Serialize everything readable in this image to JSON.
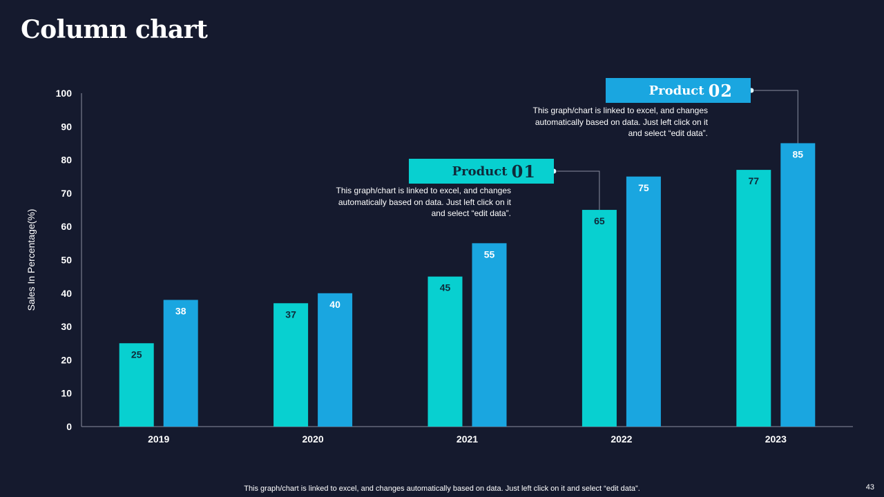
{
  "page": {
    "title": "Column chart",
    "footer": "This graph/chart is linked to excel, and changes automatically based on data. Just left click on it and select “edit data”.",
    "page_number": "43"
  },
  "colors": {
    "background": "#151a2e",
    "product01": "#08d0d0",
    "product02": "#1aa6e0",
    "axis": "#8a8fa0",
    "text": "#ffffff"
  },
  "callouts": [
    {
      "label_word": "Product",
      "label_num": "01",
      "text_lines": [
        "This graph/chart is linked to excel, and changes",
        "automatically based on data. Just left click on it",
        "and select “edit data”."
      ]
    },
    {
      "label_word": "Product",
      "label_num": "02",
      "text_lines": [
        "This graph/chart is linked to excel, and changes",
        "automatically based on data. Just left click on it",
        "and select “edit data”."
      ]
    }
  ],
  "chart_data": {
    "type": "bar",
    "title": "",
    "xlabel": "",
    "ylabel": "Sales In Percentage(%)",
    "categories": [
      "2019",
      "2020",
      "2021",
      "2022",
      "2023"
    ],
    "ylim": [
      0,
      100
    ],
    "yticks": [
      0,
      10,
      20,
      30,
      40,
      50,
      60,
      70,
      80,
      90,
      100
    ],
    "grid": false,
    "series": [
      {
        "name": "Product 01",
        "values": [
          25,
          37,
          45,
          65,
          77
        ],
        "label_color": "#0f2a3a"
      },
      {
        "name": "Product 02",
        "values": [
          38,
          40,
          55,
          75,
          85
        ],
        "label_color": "#ffffff"
      }
    ]
  }
}
